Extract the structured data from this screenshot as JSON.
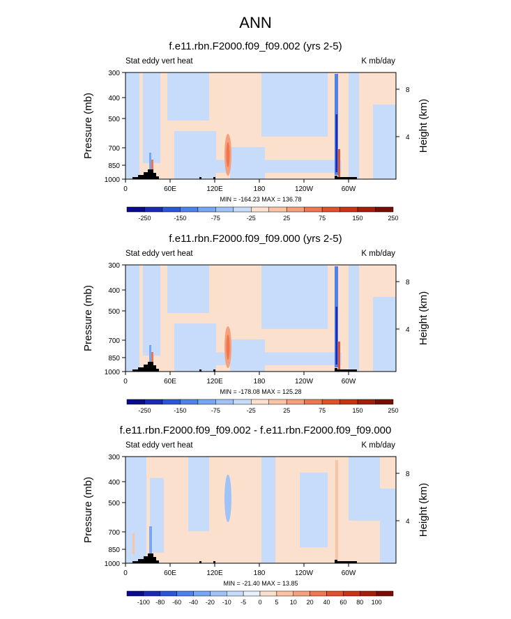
{
  "title": "ANN",
  "chart_data": [
    {
      "type": "heatmap",
      "title": "f.e11.rbn.F2000.f09_f09.002 (yrs 2-5)",
      "left_string": "Stat eddy vert heat",
      "right_string": "K mb/day",
      "ylabel": "Pressure (mb)",
      "y2label": "Height (km)",
      "xticks": [
        "0",
        "60E",
        "120E",
        "180",
        "120W",
        "60W"
      ],
      "yticks": [
        "300",
        "400",
        "500",
        "700",
        "850",
        "1000"
      ],
      "y2ticks": [
        "8",
        "4"
      ],
      "min_max": "MIN = -164.23  MAX = 136.78",
      "ylim": [
        1000,
        300
      ],
      "xlim": [
        0,
        360
      ],
      "colorbar": {
        "labels": [
          "-250",
          "-150",
          "-75",
          "-25",
          "25",
          "75",
          "150",
          "250"
        ],
        "colors": [
          "#0a0a8c",
          "#1a2ab4",
          "#2d55d8",
          "#4e82ea",
          "#77a6f2",
          "#9fc3f7",
          "#c6dcfa",
          "#fbe0cd",
          "#f9c3a4",
          "#f5a07c",
          "#ee7650",
          "#e0512b",
          "#c83316",
          "#a51d0b",
          "#7a0d03"
        ]
      },
      "features": [
        {
          "name": "strong negative column",
          "value": -150
        },
        {
          "name": "positive column near 135E",
          "value": 75
        }
      ]
    },
    {
      "type": "heatmap",
      "title": "f.e11.rbn.F2000.f09_f09.000 (yrs 2-5)",
      "left_string": "Stat eddy vert heat",
      "right_string": "K mb/day",
      "ylabel": "Pressure (mb)",
      "y2label": "Height (km)",
      "xticks": [
        "0",
        "60E",
        "120E",
        "180",
        "120W",
        "60W"
      ],
      "yticks": [
        "300",
        "400",
        "500",
        "700",
        "850",
        "1000"
      ],
      "y2ticks": [
        "8",
        "4"
      ],
      "min_max": "MIN = -178.08  MAX = 125.28",
      "ylim": [
        1000,
        300
      ],
      "xlim": [
        0,
        360
      ],
      "colorbar": {
        "labels": [
          "-250",
          "-150",
          "-75",
          "-25",
          "25",
          "75",
          "150",
          "250"
        ],
        "colors": [
          "#0a0a8c",
          "#1a2ab4",
          "#2d55d8",
          "#4e82ea",
          "#77a6f2",
          "#9fc3f7",
          "#c6dcfa",
          "#fbe0cd",
          "#f9c3a4",
          "#f5a07c",
          "#ee7650",
          "#e0512b",
          "#c83316",
          "#a51d0b",
          "#7a0d03"
        ]
      },
      "features": [
        {
          "name": "strong negative column",
          "value": -150
        },
        {
          "name": "positive column near 135E",
          "value": 75
        }
      ]
    },
    {
      "type": "heatmap",
      "title": "f.e11.rbn.F2000.f09_f09.002 - f.e11.rbn.F2000.f09_f09.000",
      "left_string": "Stat eddy vert heat",
      "right_string": "K mb/day",
      "ylabel": "Pressure (mb)",
      "y2label": "Height (km)",
      "xticks": [
        "0",
        "60E",
        "120E",
        "180",
        "120W",
        "60W"
      ],
      "yticks": [
        "300",
        "400",
        "500",
        "700",
        "850",
        "1000"
      ],
      "y2ticks": [
        "8",
        "4"
      ],
      "min_max": "MIN = -21.40  MAX = 13.85",
      "ylim": [
        1000,
        300
      ],
      "xlim": [
        0,
        360
      ],
      "colorbar": {
        "labels": [
          "-100",
          "-80",
          "-60",
          "-40",
          "-20",
          "-10",
          "-5",
          "0",
          "5",
          "10",
          "20",
          "40",
          "60",
          "80",
          "100"
        ],
        "colors": [
          "#0a0a8c",
          "#1a2ab4",
          "#2d55d8",
          "#4e82ea",
          "#77a6f2",
          "#9fc3f7",
          "#c6dcfa",
          "#e8f0fc",
          "#fbe0cd",
          "#f9c3a4",
          "#f5a07c",
          "#ee7650",
          "#e0512b",
          "#c83316",
          "#a51d0b",
          "#7a0d03"
        ]
      },
      "features": [
        {
          "name": "weak negative column near 135E",
          "value": -10
        },
        {
          "name": "weak positive column",
          "value": 10
        }
      ]
    }
  ]
}
